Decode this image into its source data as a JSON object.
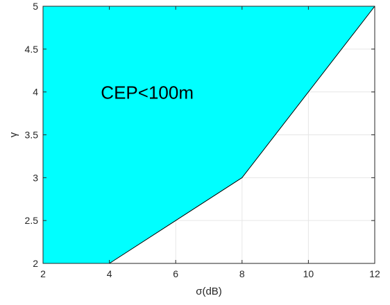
{
  "chart_data": {
    "type": "area",
    "title": "",
    "xlabel": "σ(dB)",
    "ylabel": "γ",
    "xlim": [
      2,
      12
    ],
    "ylim": [
      2,
      5
    ],
    "xticks": [
      2,
      4,
      6,
      8,
      10,
      12
    ],
    "yticks": [
      2,
      2.5,
      3,
      3.5,
      4,
      4.5,
      5
    ],
    "xtick_labels": [
      "2",
      "4",
      "6",
      "8",
      "10",
      "12"
    ],
    "ytick_labels": [
      "2",
      "2.5",
      "3",
      "3.5",
      "4",
      "4.5",
      "5"
    ],
    "grid": true,
    "fill_color": "#00ffff",
    "boundary_color": "#000000",
    "region": {
      "boundary_x": [
        4,
        8,
        12
      ],
      "boundary_y": [
        2,
        3,
        5
      ],
      "fill": "above-left"
    },
    "annotation": {
      "text": "CEP<100m",
      "x": 5.5,
      "y": 4
    }
  }
}
